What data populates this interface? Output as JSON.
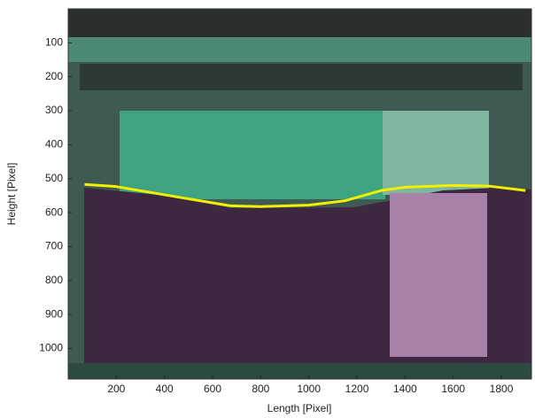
{
  "chart_data": {
    "type": "line",
    "xlabel": "Length [Pixel]",
    "ylabel": "Height [Pixel]",
    "series": [
      {
        "color": "#f2f000",
        "x": [
          68,
          196,
          454,
          674,
          800,
          1000,
          1150,
          1300,
          1400,
          1600,
          1750,
          1900
        ],
        "values": [
          517,
          523,
          554,
          580,
          582,
          578,
          565,
          535,
          525,
          520,
          522,
          535
        ]
      }
    ],
    "xlim": [
      0,
      1925
    ],
    "ylim": [
      1090,
      0
    ],
    "xticks": [
      200,
      400,
      600,
      800,
      1000,
      1200,
      1400,
      1600,
      1800
    ],
    "yticks": [
      100,
      200,
      300,
      400,
      500,
      600,
      700,
      800,
      900,
      1000
    ]
  }
}
